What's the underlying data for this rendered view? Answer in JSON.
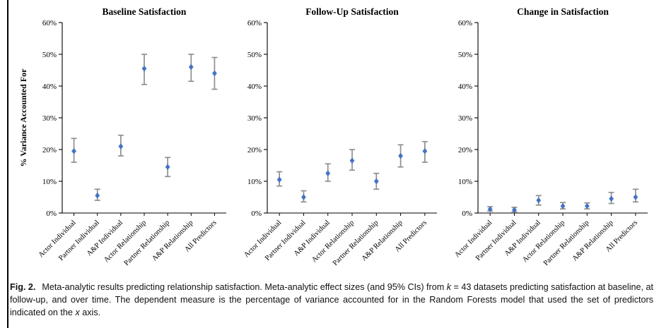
{
  "chart_data": [
    {
      "type": "scatter",
      "title": "Baseline Satisfaction",
      "ylabel": "% Variance Accounted For",
      "xlabel": "",
      "ylim": [
        0,
        60
      ],
      "ytick_step": 10,
      "ytick_suffix": "%",
      "grid": false,
      "legend": "none",
      "categories": [
        "Actor Individual",
        "Partner Individual",
        "A&P Individual",
        "Actor Relationship",
        "Partner Relationship",
        "A&P Relationship",
        "All Predictors"
      ],
      "values": [
        19.5,
        5.5,
        21,
        45.5,
        14.5,
        46,
        44
      ],
      "ci_low": [
        16,
        4,
        18,
        40.5,
        11.5,
        41.5,
        39
      ],
      "ci_high": [
        23.5,
        7.5,
        24.5,
        50,
        17.5,
        50,
        49
      ],
      "point_color": "#4472c4",
      "error_color": "#8f8f8f"
    },
    {
      "type": "scatter",
      "title": "Follow-Up Satisfaction",
      "ylabel": "",
      "xlabel": "",
      "ylim": [
        0,
        60
      ],
      "ytick_step": 10,
      "ytick_suffix": "%",
      "grid": false,
      "legend": "none",
      "categories": [
        "Actor Individual",
        "Partner Individual",
        "A&P Individual",
        "Actor Relationship",
        "Partner Relationship",
        "A&P Relationship",
        "All Predictors"
      ],
      "values": [
        10.5,
        5,
        12.5,
        16.5,
        10,
        18,
        19.5
      ],
      "ci_low": [
        8.5,
        3.5,
        10,
        13.5,
        7.5,
        14.5,
        16
      ],
      "ci_high": [
        13,
        7,
        15.5,
        20,
        12.5,
        21.5,
        22.5
      ],
      "point_color": "#4472c4",
      "error_color": "#8f8f8f"
    },
    {
      "type": "scatter",
      "title": "Change in Satisfaction",
      "ylabel": "",
      "xlabel": "",
      "ylim": [
        0,
        60
      ],
      "ytick_step": 10,
      "ytick_suffix": "%",
      "grid": false,
      "legend": "none",
      "categories": [
        "Actor Individual",
        "Partner Individual",
        "A&P Individual",
        "Actor Relationship",
        "Partner Relationship",
        "A&P Relationship",
        "All Predictors"
      ],
      "values": [
        1.2,
        1,
        4,
        2.2,
        2.2,
        4.5,
        5
      ],
      "ci_low": [
        0.6,
        0.4,
        2.5,
        1.3,
        1.3,
        3,
        3.5
      ],
      "ci_high": [
        2,
        1.8,
        5.5,
        3.3,
        3.2,
        6.5,
        7.5
      ],
      "point_color": "#4472c4",
      "error_color": "#8f8f8f"
    }
  ],
  "caption": {
    "label": "Fig. 2.",
    "text_1": "Meta-analytic results predicting relationship satisfaction. Meta-analytic effect sizes (and 95% CIs) from ",
    "k_italic": "k",
    "text_2": " = 43 datasets predicting satisfaction at baseline, at follow-up, and over time. The dependent measure is the percentage of variance accounted for in the Random Forests model that used the set of predictors indicated on the ",
    "x_italic": "x",
    "text_3": " axis."
  }
}
